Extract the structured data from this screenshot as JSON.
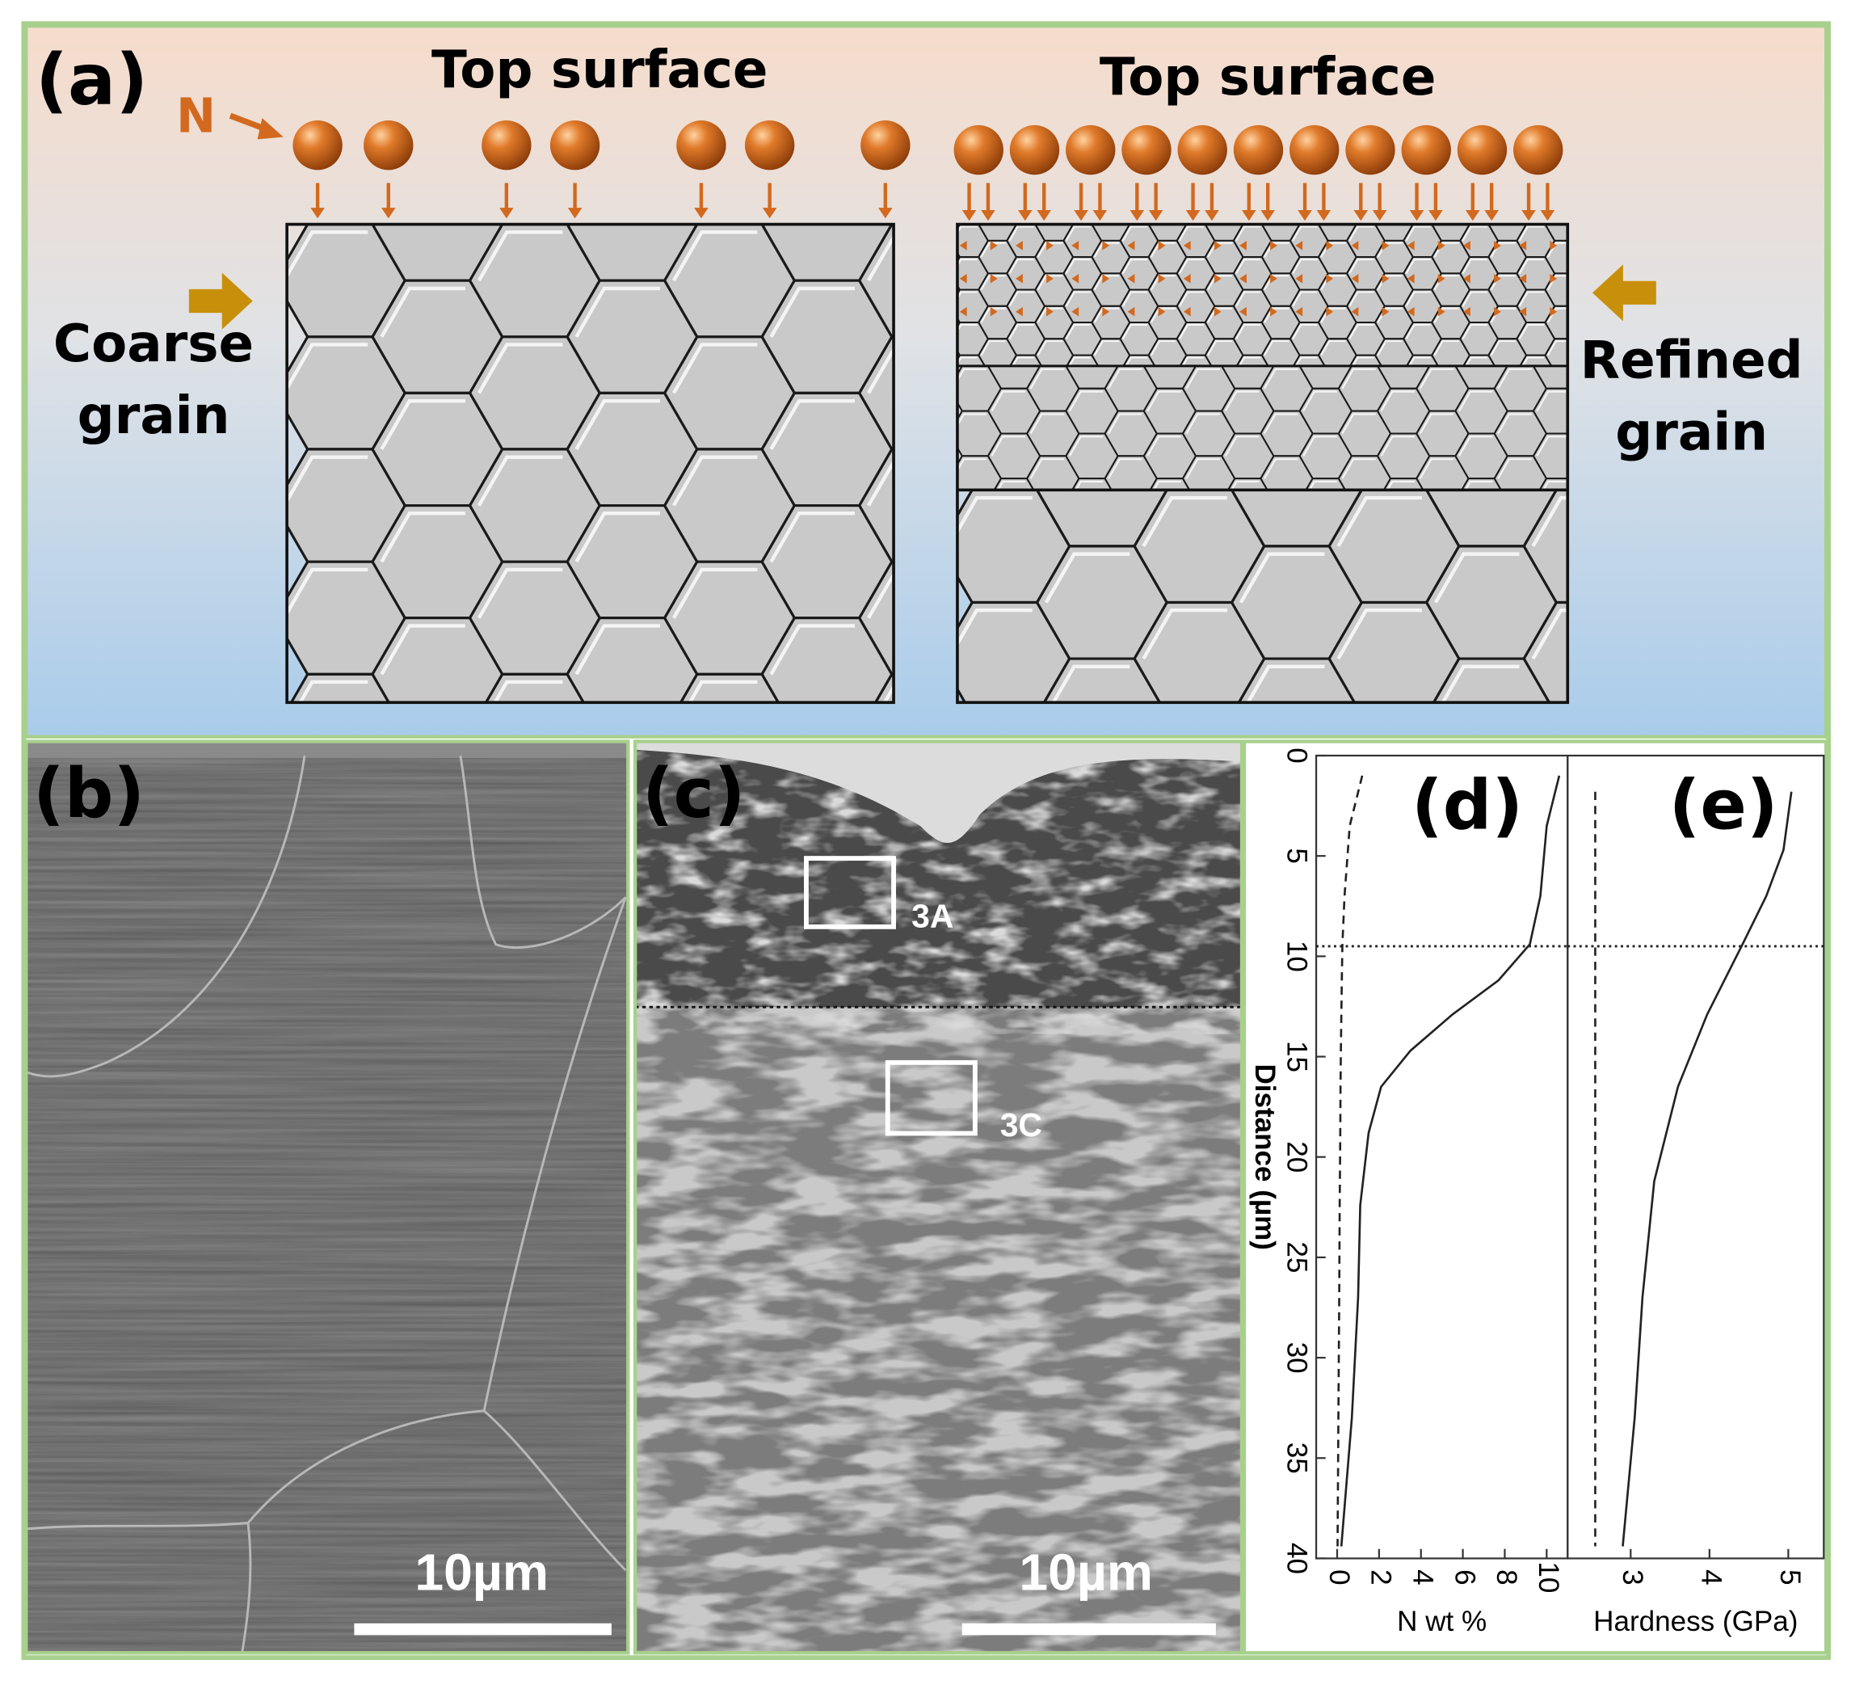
{
  "panel_a": {
    "label": "(a)",
    "nitrogen_label": "N",
    "left_title": "Top surface",
    "right_title": "Top surface",
    "left_label": [
      "Coarse",
      "grain"
    ],
    "right_label": [
      "Refined",
      "grain"
    ]
  },
  "panel_b": {
    "label": "(b)",
    "scale_bar": "10µm"
  },
  "panel_c": {
    "label": "(c)",
    "scale_bar": "10µm",
    "regions": [
      "3A",
      "3C"
    ]
  },
  "chart_data": [
    {
      "type": "line",
      "panel_label": "(d)",
      "xlabel": "N wt %",
      "ylabel": "Distance (µm)",
      "xlim": [
        -1,
        11
      ],
      "xticks": [
        0,
        2,
        4,
        6,
        8,
        10
      ],
      "ylim": [
        40,
        0
      ],
      "yticks": [
        0,
        5,
        10,
        15,
        20,
        25,
        30,
        35,
        40
      ],
      "reference_line": 9.5,
      "y": [
        1,
        3.5,
        7,
        9.4,
        11.2,
        12.9,
        14.7,
        16.5,
        18.8,
        22.4,
        27,
        33,
        39.4
      ],
      "series": [
        {
          "color": "#222222",
          "line_style": "solid",
          "values": [
            10.6,
            10,
            9.7,
            9.2,
            7.7,
            5.5,
            3.5,
            2.1,
            1.5,
            1.1,
            1.0,
            0.7,
            0.2
          ]
        },
        {
          "color": "#222222",
          "line_style": "dashed",
          "values": [
            1.2,
            0.6,
            0.35,
            0.25,
            0.22,
            0.2,
            0.18,
            0.16,
            0.15,
            0.12,
            0.1,
            0.06,
            0.02
          ]
        }
      ]
    },
    {
      "type": "line",
      "panel_label": "(e)",
      "xlabel": "Hardness (GPa)",
      "xlim": [
        2.2,
        5.45
      ],
      "xticks": [
        3,
        4,
        5
      ],
      "ylim": [
        40,
        0
      ],
      "reference_line": 9.5,
      "y": [
        1.8,
        4.7,
        7,
        9.4,
        12.9,
        16.5,
        21.2,
        27,
        33,
        39.4
      ],
      "series": [
        {
          "color": "#222222",
          "line_style": "solid",
          "values": [
            5.04,
            4.94,
            4.72,
            4.42,
            3.97,
            3.6,
            3.3,
            3.15,
            3.05,
            2.9
          ]
        },
        {
          "color": "#222222",
          "line_style": "dashed",
          "values": [
            2.55,
            2.55,
            2.55,
            2.55,
            2.55,
            2.55,
            2.55,
            2.55,
            2.55,
            2.55
          ]
        }
      ]
    }
  ]
}
